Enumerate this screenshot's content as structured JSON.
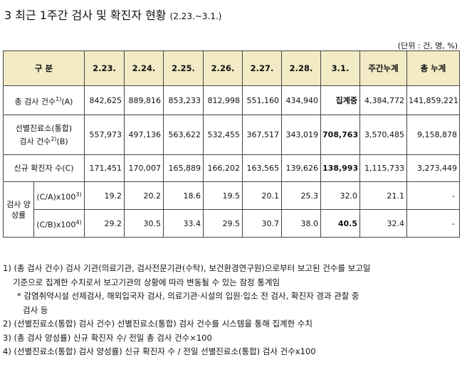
{
  "title": {
    "main": "3 최근 1주간 검사 및 확진자 현황",
    "period": "(2.23.~3.1.)"
  },
  "unit": "(단위 : 건, 명, %)",
  "table": {
    "headers": [
      "구 분",
      "2.23.",
      "2.24.",
      "2.25.",
      "2.26.",
      "2.27.",
      "2.28.",
      "3.1.",
      "주간누계",
      "총 누계"
    ],
    "rows": [
      {
        "label": "총 검사 건수",
        "sup": "1)",
        "suffix": "(A)",
        "values": [
          "842,625",
          "889,816",
          "853,233",
          "812,998",
          "551,160",
          "434,940",
          "집계중",
          "4,384,772",
          "141,859,221"
        ]
      },
      {
        "label_line1": "선별진료소(통합)",
        "label_line2": "검사 건수",
        "sup": "2)",
        "suffix": "(B)",
        "values": [
          "557,973",
          "497,136",
          "563,622",
          "532,455",
          "367,517",
          "343,019",
          "708,763",
          "3,570,485",
          "9,158,878"
        ]
      },
      {
        "label": "신규 확진자 수(C)",
        "values": [
          "171,451",
          "170,007",
          "165,889",
          "166,202",
          "163,565",
          "139,626",
          "138,993",
          "1,115,733",
          "3,273,449"
        ]
      }
    ],
    "positivity": {
      "group_line1": "검사 양",
      "group_line2": "성률",
      "rows": [
        {
          "label": "(C/A)x100",
          "sup": "3)",
          "values": [
            "19.2",
            "20.2",
            "18.6",
            "19.5",
            "20.1",
            "25.3",
            "32.0",
            "21.1",
            "-"
          ]
        },
        {
          "label": "(C/B)x100",
          "sup": "4)",
          "values": [
            "29.2",
            "30.5",
            "33.4",
            "29.5",
            "30.7",
            "38.0",
            "40.5",
            "32.4",
            "-"
          ]
        }
      ]
    }
  },
  "notes": {
    "n1_line1": "1) (총 검사 건수) 검사 기관(의료기관, 검사전문기관(수탁), 보건환경연구원)으로부터 보고된 건수를 보고일",
    "n1_line2": "기준으로 집계한 수치로서 보고기관의 상황에 따라 변동될 수 있는 잠정 통계임",
    "n1_sub_line1": "* 감염취약시설 선제검사, 해외입국자 검사, 의료기관·시설의 입원·입소 전 검사, 확진자 경과 관찰 중",
    "n1_sub_line2": "검사 등",
    "n2": "2) (선별진료소(통합) 검사 건수) 선별진료소(통합) 검사 건수를 시스템을 통해 집계한 수치",
    "n3": "3) (총 검사 양성률) 신규 확진자 수/ 전일 총 검사 건수×100",
    "n4": "4) (선별진료소(통합) 검사 양성률) 신규 확진자 수 / 전일 선별진료소(통합) 검사 건수x100"
  }
}
